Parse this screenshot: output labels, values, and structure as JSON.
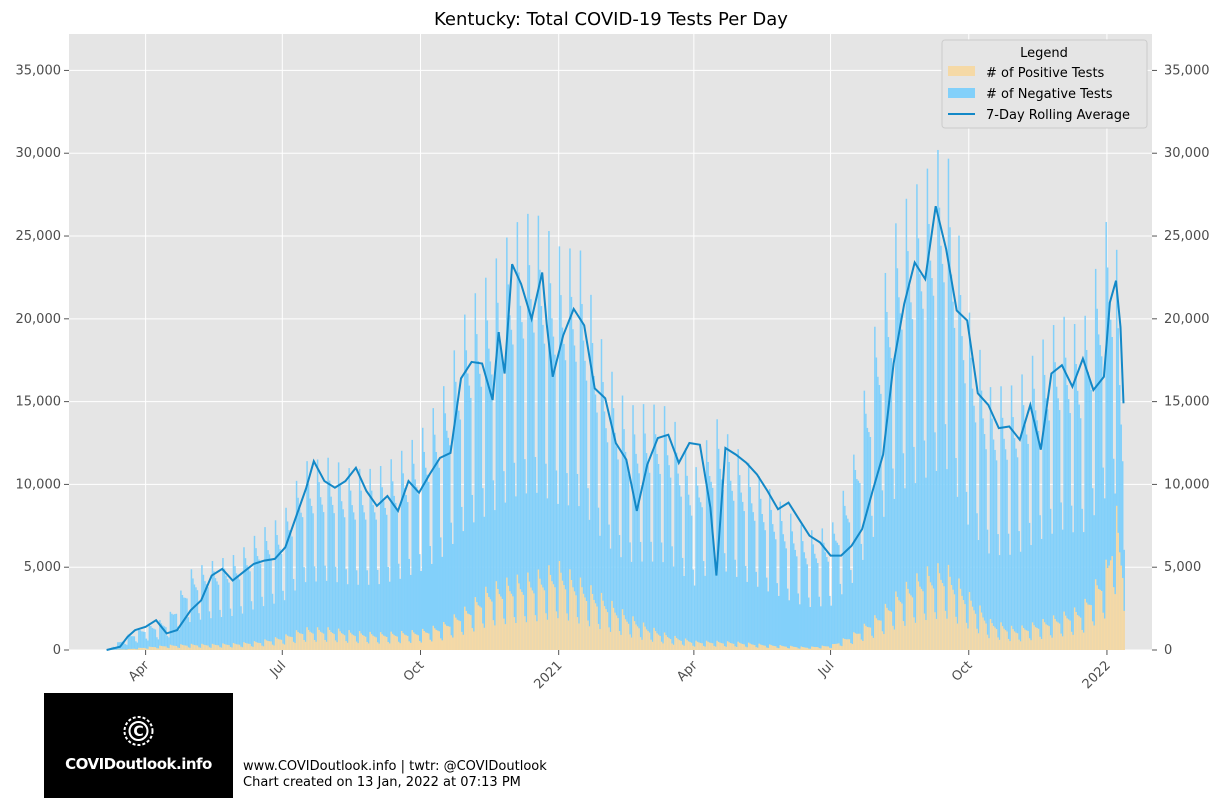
{
  "chart_data": {
    "type": "bar",
    "title": "Kentucky: Total COVID-19 Tests Per Day",
    "xlabel": "",
    "ylabel": "",
    "ylim": [
      0,
      37200
    ],
    "y_ticks": [
      0,
      5000,
      10000,
      15000,
      20000,
      25000,
      30000,
      35000
    ],
    "y_tick_labels": [
      "0",
      "5,000",
      "10,000",
      "15,000",
      "20,000",
      "25,000",
      "30,000",
      "35,000"
    ],
    "x_range": [
      "2020-02-10",
      "2022-01-31"
    ],
    "x_ticks": [
      {
        "date": "2020-04-01",
        "label": "Apr"
      },
      {
        "date": "2020-07-01",
        "label": "Jul"
      },
      {
        "date": "2020-10-01",
        "label": "Oct"
      },
      {
        "date": "2021-01-01",
        "label": "2021"
      },
      {
        "date": "2021-04-01",
        "label": "Apr"
      },
      {
        "date": "2021-07-01",
        "label": "Jul"
      },
      {
        "date": "2021-10-01",
        "label": "Oct"
      },
      {
        "date": "2022-01-01",
        "label": "2022"
      }
    ],
    "grid": true,
    "stacked": true,
    "legend_title": "Legend",
    "legend_position": "top-right",
    "series": [
      {
        "name": "# of Positive Tests",
        "type": "bar",
        "color": "#f5d9a6",
        "points": [
          [
            "2020-03-06",
            0
          ],
          [
            "2020-03-20",
            50
          ],
          [
            "2020-04-01",
            150
          ],
          [
            "2020-04-15",
            250
          ],
          [
            "2020-05-01",
            300
          ],
          [
            "2020-05-15",
            300
          ],
          [
            "2020-06-01",
            350
          ],
          [
            "2020-06-15",
            450
          ],
          [
            "2020-07-01",
            700
          ],
          [
            "2020-07-15",
            1100
          ],
          [
            "2020-08-01",
            1100
          ],
          [
            "2020-08-15",
            950
          ],
          [
            "2020-09-01",
            850
          ],
          [
            "2020-09-15",
            900
          ],
          [
            "2020-10-01",
            1000
          ],
          [
            "2020-10-15",
            1300
          ],
          [
            "2020-11-01",
            2200
          ],
          [
            "2020-11-15",
            3200
          ],
          [
            "2020-12-01",
            3600
          ],
          [
            "2020-12-15",
            3800
          ],
          [
            "2021-01-01",
            4300
          ],
          [
            "2021-01-15",
            3500
          ],
          [
            "2021-02-01",
            2600
          ],
          [
            "2021-02-15",
            1800
          ],
          [
            "2021-03-01",
            1200
          ],
          [
            "2021-03-15",
            750
          ],
          [
            "2021-04-01",
            450
          ],
          [
            "2021-04-15",
            450
          ],
          [
            "2021-05-01",
            400
          ],
          [
            "2021-05-15",
            300
          ],
          [
            "2021-06-01",
            220
          ],
          [
            "2021-06-15",
            150
          ],
          [
            "2021-07-01",
            250
          ],
          [
            "2021-07-15",
            800
          ],
          [
            "2021-08-01",
            1800
          ],
          [
            "2021-08-15",
            3000
          ],
          [
            "2021-09-01",
            4000
          ],
          [
            "2021-09-15",
            4300
          ],
          [
            "2021-10-01",
            2800
          ],
          [
            "2021-10-15",
            1500
          ],
          [
            "2021-11-01",
            1100
          ],
          [
            "2021-11-15",
            1400
          ],
          [
            "2021-12-01",
            1800
          ],
          [
            "2021-12-15",
            2200
          ],
          [
            "2022-01-01",
            4500
          ],
          [
            "2022-01-06",
            7500
          ],
          [
            "2022-01-12",
            4300
          ]
        ]
      },
      {
        "name": "# of Negative Tests",
        "type": "bar",
        "color": "#82d0fa",
        "points": [
          [
            "2020-03-06",
            0
          ],
          [
            "2020-03-20",
            700
          ],
          [
            "2020-04-01",
            1100
          ],
          [
            "2020-04-15",
            1300
          ],
          [
            "2020-05-01",
            3600
          ],
          [
            "2020-05-15",
            4000
          ],
          [
            "2020-06-01",
            4300
          ],
          [
            "2020-06-15",
            5300
          ],
          [
            "2020-07-01",
            5800
          ],
          [
            "2020-07-15",
            8000
          ],
          [
            "2020-08-01",
            8200
          ],
          [
            "2020-08-15",
            7800
          ],
          [
            "2020-09-01",
            7900
          ],
          [
            "2020-09-15",
            8500
          ],
          [
            "2020-10-01",
            9600
          ],
          [
            "2020-10-15",
            11200
          ],
          [
            "2020-11-01",
            14500
          ],
          [
            "2020-11-15",
            15000
          ],
          [
            "2020-12-01",
            16900
          ],
          [
            "2020-12-15",
            17500
          ],
          [
            "2021-01-01",
            15200
          ],
          [
            "2021-01-15",
            15800
          ],
          [
            "2021-02-01",
            11500
          ],
          [
            "2021-02-15",
            10000
          ],
          [
            "2021-03-01",
            10700
          ],
          [
            "2021-03-15",
            11000
          ],
          [
            "2021-04-01",
            8200
          ],
          [
            "2021-04-15",
            10800
          ],
          [
            "2021-05-01",
            9200
          ],
          [
            "2021-05-15",
            8000
          ],
          [
            "2021-06-01",
            6600
          ],
          [
            "2021-06-15",
            5600
          ],
          [
            "2021-07-01",
            5700
          ],
          [
            "2021-07-15",
            8200
          ],
          [
            "2021-08-01",
            14700
          ],
          [
            "2021-08-15",
            18300
          ],
          [
            "2021-09-01",
            19000
          ],
          [
            "2021-09-15",
            20500
          ],
          [
            "2021-10-01",
            13500
          ],
          [
            "2021-10-15",
            11200
          ],
          [
            "2021-11-01",
            11700
          ],
          [
            "2021-11-15",
            13200
          ],
          [
            "2021-12-01",
            14400
          ],
          [
            "2021-12-15",
            13300
          ],
          [
            "2022-01-01",
            16500
          ],
          [
            "2022-01-06",
            13500
          ],
          [
            "2022-01-12",
            6700
          ]
        ]
      },
      {
        "name": "7-Day Rolling Average",
        "type": "line",
        "color": "#1388c7",
        "points": [
          [
            "2020-03-06",
            0
          ],
          [
            "2020-03-15",
            200
          ],
          [
            "2020-03-20",
            800
          ],
          [
            "2020-03-25",
            1200
          ],
          [
            "2020-04-01",
            1400
          ],
          [
            "2020-04-08",
            1800
          ],
          [
            "2020-04-15",
            1000
          ],
          [
            "2020-04-22",
            1200
          ],
          [
            "2020-05-01",
            2400
          ],
          [
            "2020-05-08",
            3000
          ],
          [
            "2020-05-15",
            4500
          ],
          [
            "2020-05-22",
            4900
          ],
          [
            "2020-05-29",
            4200
          ],
          [
            "2020-06-05",
            4700
          ],
          [
            "2020-06-12",
            5200
          ],
          [
            "2020-06-19",
            5400
          ],
          [
            "2020-06-26",
            5500
          ],
          [
            "2020-07-03",
            6200
          ],
          [
            "2020-07-10",
            8000
          ],
          [
            "2020-07-17",
            9800
          ],
          [
            "2020-07-22",
            11400
          ],
          [
            "2020-07-29",
            10200
          ],
          [
            "2020-08-05",
            9800
          ],
          [
            "2020-08-12",
            10200
          ],
          [
            "2020-08-19",
            11000
          ],
          [
            "2020-08-26",
            9600
          ],
          [
            "2020-09-02",
            8700
          ],
          [
            "2020-09-09",
            9300
          ],
          [
            "2020-09-16",
            8400
          ],
          [
            "2020-09-23",
            10200
          ],
          [
            "2020-09-30",
            9500
          ],
          [
            "2020-10-07",
            10600
          ],
          [
            "2020-10-14",
            11600
          ],
          [
            "2020-10-21",
            11900
          ],
          [
            "2020-10-28",
            16400
          ],
          [
            "2020-11-04",
            17400
          ],
          [
            "2020-11-11",
            17300
          ],
          [
            "2020-11-18",
            15100
          ],
          [
            "2020-11-22",
            19200
          ],
          [
            "2020-11-26",
            16700
          ],
          [
            "2020-12-01",
            23300
          ],
          [
            "2020-12-07",
            22100
          ],
          [
            "2020-12-14",
            20000
          ],
          [
            "2020-12-21",
            22800
          ],
          [
            "2020-12-24",
            19700
          ],
          [
            "2020-12-28",
            16500
          ],
          [
            "2021-01-04",
            19000
          ],
          [
            "2021-01-11",
            20600
          ],
          [
            "2021-01-18",
            19600
          ],
          [
            "2021-01-25",
            15800
          ],
          [
            "2021-02-01",
            15200
          ],
          [
            "2021-02-08",
            12500
          ],
          [
            "2021-02-15",
            11500
          ],
          [
            "2021-02-22",
            8400
          ],
          [
            "2021-03-01",
            11200
          ],
          [
            "2021-03-08",
            12800
          ],
          [
            "2021-03-15",
            13000
          ],
          [
            "2021-03-22",
            11300
          ],
          [
            "2021-03-29",
            12500
          ],
          [
            "2021-04-05",
            12400
          ],
          [
            "2021-04-12",
            8600
          ],
          [
            "2021-04-16",
            4500
          ],
          [
            "2021-04-22",
            12200
          ],
          [
            "2021-04-29",
            11800
          ],
          [
            "2021-05-06",
            11300
          ],
          [
            "2021-05-13",
            10600
          ],
          [
            "2021-05-20",
            9600
          ],
          [
            "2021-05-27",
            8500
          ],
          [
            "2021-06-03",
            8900
          ],
          [
            "2021-06-10",
            7900
          ],
          [
            "2021-06-17",
            6900
          ],
          [
            "2021-06-24",
            6500
          ],
          [
            "2021-07-01",
            5700
          ],
          [
            "2021-07-08",
            5700
          ],
          [
            "2021-07-15",
            6300
          ],
          [
            "2021-07-22",
            7300
          ],
          [
            "2021-07-29",
            9600
          ],
          [
            "2021-08-05",
            11800
          ],
          [
            "2021-08-12",
            17300
          ],
          [
            "2021-08-19",
            20900
          ],
          [
            "2021-08-26",
            23400
          ],
          [
            "2021-09-02",
            22400
          ],
          [
            "2021-09-09",
            26800
          ],
          [
            "2021-09-16",
            24200
          ],
          [
            "2021-09-23",
            20500
          ],
          [
            "2021-09-30",
            19900
          ],
          [
            "2021-10-07",
            15500
          ],
          [
            "2021-10-14",
            14800
          ],
          [
            "2021-10-21",
            13400
          ],
          [
            "2021-10-28",
            13500
          ],
          [
            "2021-11-04",
            12700
          ],
          [
            "2021-11-11",
            14800
          ],
          [
            "2021-11-18",
            12100
          ],
          [
            "2021-11-25",
            16700
          ],
          [
            "2021-12-02",
            17200
          ],
          [
            "2021-12-09",
            15900
          ],
          [
            "2021-12-16",
            17600
          ],
          [
            "2021-12-23",
            15700
          ],
          [
            "2021-12-30",
            16500
          ],
          [
            "2022-01-03",
            21000
          ],
          [
            "2022-01-07",
            22300
          ],
          [
            "2022-01-10",
            19500
          ],
          [
            "2022-01-12",
            14900
          ]
        ]
      }
    ]
  },
  "footer": {
    "line1": "www.COVIDoutlook.info | twtr: @COVIDoutlook",
    "line2": "Chart created on 13 Jan, 2022 at 07:13 PM"
  },
  "logo": {
    "text": "COVIDoutlook.info",
    "icon": "covid-c-circle-icon"
  }
}
